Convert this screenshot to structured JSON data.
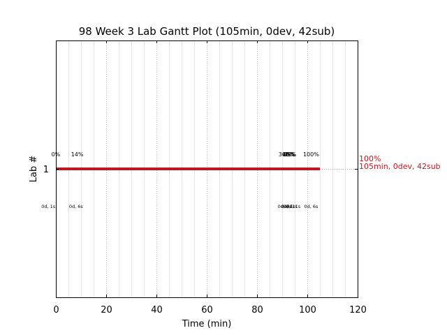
{
  "chart_data": {
    "type": "gantt",
    "title": "98 Week 3 Lab Gantt Plot (105min, 0dev, 42sub)",
    "xlabel": "Time (min)",
    "ylabel": "Lab #",
    "xlim": [
      0,
      120
    ],
    "x_ticks": [
      0,
      20,
      40,
      60,
      80,
      100,
      120
    ],
    "x_tick_labels": [
      "0",
      "20",
      "40",
      "60",
      "80",
      "100",
      "120"
    ],
    "y_ticks": [
      1
    ],
    "y_tick_labels": [
      "1"
    ],
    "grid": "x-dotted",
    "bar_color": "#c0171e",
    "bars": [
      {
        "lab": 1,
        "start": 0,
        "end": 105
      }
    ],
    "percent_labels": [
      {
        "x": 0,
        "text": "0%"
      },
      {
        "x": 8.5,
        "text": "14%"
      },
      {
        "x": 91,
        "text": "30%"
      },
      {
        "x": 92.5,
        "text": "48%"
      },
      {
        "x": 92.8,
        "text": "65%"
      },
      {
        "x": 93.2,
        "text": "85%"
      },
      {
        "x": 101.5,
        "text": "100%"
      }
    ],
    "time_labels": [
      {
        "x": -3,
        "text": "0d, 1s"
      },
      {
        "x": 8,
        "text": "0d, 6s"
      },
      {
        "x": 91,
        "text": "0d, 8s"
      },
      {
        "x": 92.3,
        "text": "0d, 1s"
      },
      {
        "x": 93.2,
        "text": "0d, 1s"
      },
      {
        "x": 94.5,
        "text": "0d, 1s"
      },
      {
        "x": 101.5,
        "text": "0d, 6s"
      }
    ],
    "end_annotation": {
      "line1": "100%",
      "line2": "105min, 0dev, 42sub",
      "color": "#c0171e"
    }
  }
}
